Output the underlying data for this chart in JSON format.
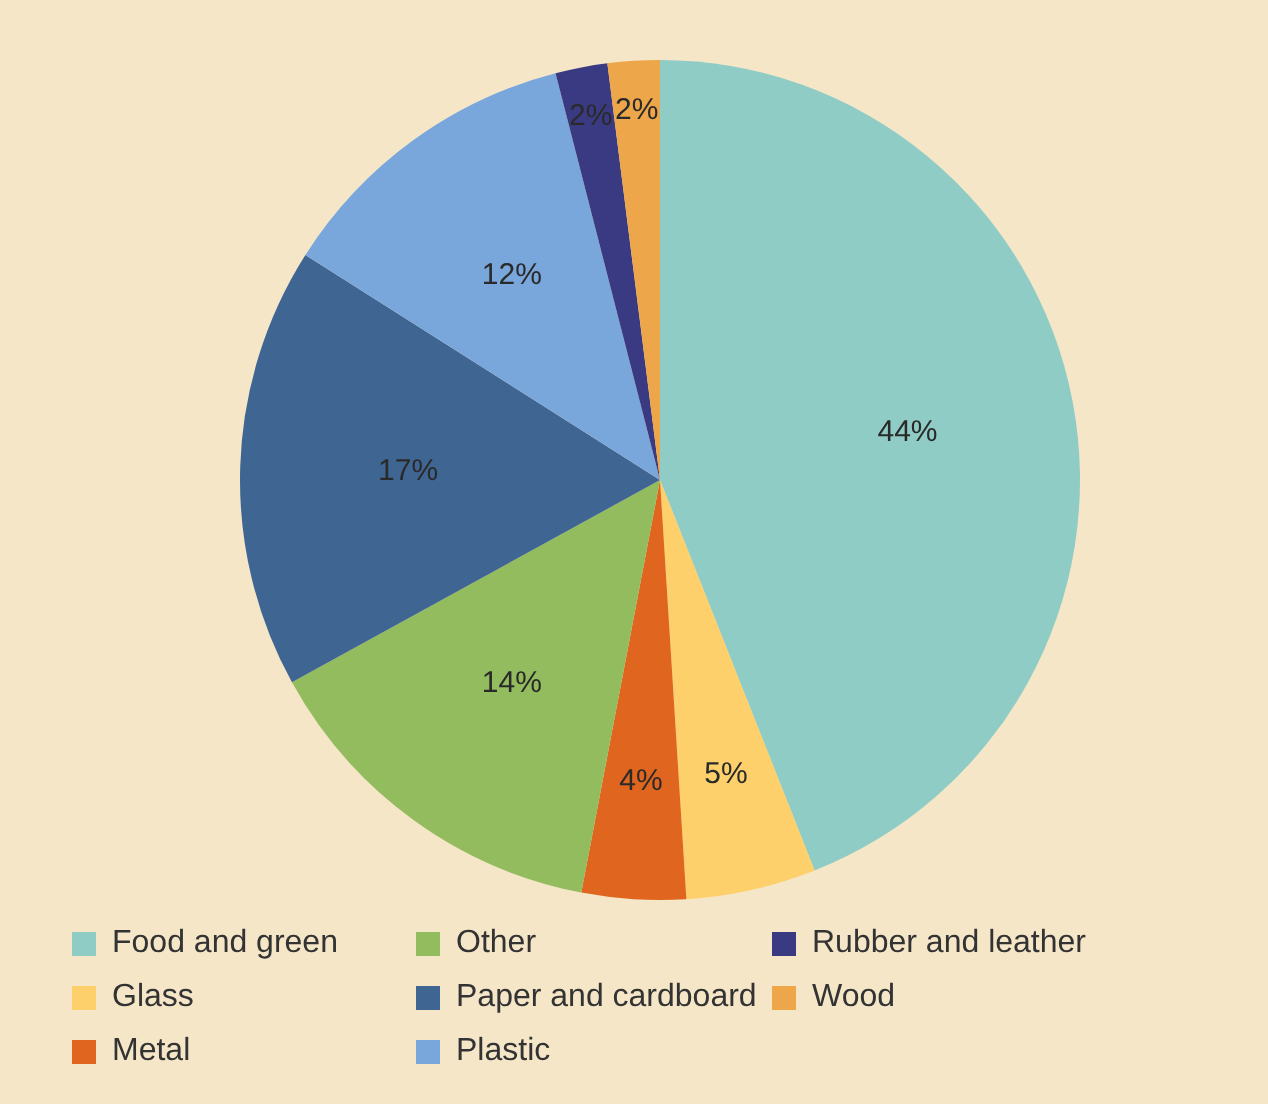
{
  "chart_data": {
    "type": "pie",
    "categories": [
      "Food and green",
      "Glass",
      "Metal",
      "Other",
      "Paper and cardboard",
      "Plastic",
      "Rubber and leather",
      "Wood"
    ],
    "values": [
      44,
      5,
      4,
      14,
      17,
      12,
      2,
      2
    ],
    "colors": [
      "#8fccc5",
      "#fdd06b",
      "#e0651f",
      "#93bc5f",
      "#3f6593",
      "#79a7dc",
      "#3a3a82",
      "#eda64a"
    ],
    "value_labels": [
      "44%",
      "5%",
      "4%",
      "14%",
      "17%",
      "12%",
      "2%",
      "2%"
    ],
    "legend": "bottom"
  }
}
